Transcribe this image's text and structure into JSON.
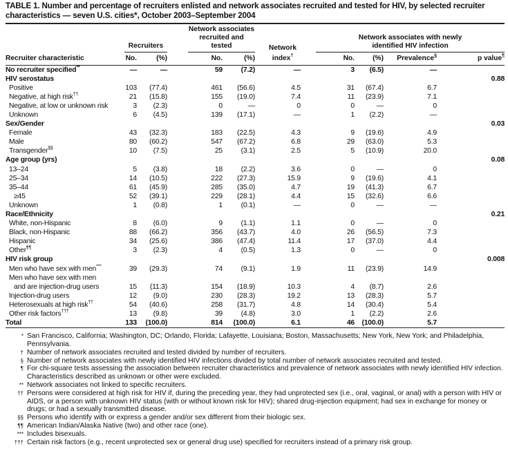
{
  "title": "TABLE 1. Number and percentage of recruiters enlisted and network associates recruited and tested for HIV, by selected recruiter characteristics — seven U.S. cities*, October 2003–September 2004",
  "headers": {
    "recruiters": "Recruiters",
    "network_associates": "Network associates recruited and tested",
    "network_index": "Network",
    "network_index2": "index",
    "network_index_sup": "†",
    "hiv_group": "Network associates with newly identified HIV infection",
    "characteristic": "Recruiter characteristic",
    "no": "No.",
    "pct": "(%)",
    "prevalence": "Prevalence",
    "prevalence_sup": "§",
    "p_value": "p value",
    "p_value_sup": "¶"
  },
  "rows": [
    {
      "label": "No recruiter specified",
      "sup": "**",
      "type": "bold",
      "v": [
        "—",
        "—",
        "59",
        "(7.2)",
        "—",
        "3",
        "(6.5)",
        "—",
        ""
      ]
    },
    {
      "label": "HIV serostatus",
      "type": "group",
      "v": [
        "",
        "",
        "",
        "",
        "",
        "",
        "",
        "",
        "0.88"
      ]
    },
    {
      "label": "Positive",
      "type": "item",
      "v": [
        "103",
        "(77.4)",
        "461",
        "(56.6)",
        "4.5",
        "31",
        "(67.4)",
        "6.7",
        ""
      ]
    },
    {
      "label": "Negative, at high risk",
      "sup": "††",
      "type": "item",
      "v": [
        "21",
        "(15.8)",
        "155",
        "(19.0)",
        "7.4",
        "11",
        "(23.9)",
        "7.1",
        ""
      ]
    },
    {
      "label": "Negative, at low or unknown risk",
      "type": "item",
      "v": [
        "3",
        "(2.3)",
        "0",
        "—",
        "0",
        "0",
        "—",
        "0",
        ""
      ]
    },
    {
      "label": "Unknown",
      "type": "item",
      "v": [
        "6",
        "(4.5)",
        "139",
        "(17.1)",
        "—",
        "1",
        "(2.2)",
        "—",
        ""
      ]
    },
    {
      "label": "Sex/Gender",
      "type": "group",
      "v": [
        "",
        "",
        "",
        "",
        "",
        "",
        "",
        "",
        "0.03"
      ]
    },
    {
      "label": "Female",
      "type": "item",
      "v": [
        "43",
        "(32.3)",
        "183",
        "(22.5)",
        "4.3",
        "9",
        "(19.6)",
        "4.9",
        ""
      ]
    },
    {
      "label": "Male",
      "type": "item",
      "v": [
        "80",
        "(60.2)",
        "547",
        "(67.2)",
        "6.8",
        "29",
        "(63.0)",
        "5.3",
        ""
      ]
    },
    {
      "label": "Transgender",
      "sup": "§§",
      "type": "item",
      "v": [
        "10",
        "(7.5)",
        "25",
        "(3.1)",
        "2.5",
        "5",
        "(10.9)",
        "20.0",
        ""
      ]
    },
    {
      "label": "Age group (yrs)",
      "type": "group",
      "v": [
        "",
        "",
        "",
        "",
        "",
        "",
        "",
        "",
        "0.08"
      ]
    },
    {
      "label": "13–24",
      "type": "item",
      "v": [
        "5",
        "(3.8)",
        "18",
        "(2.2)",
        "3.6",
        "0",
        "—",
        "0",
        ""
      ]
    },
    {
      "label": "25–34",
      "type": "item",
      "v": [
        "14",
        "(10.5)",
        "222",
        "(27.3)",
        "15.9",
        "9",
        "(19.6)",
        "4.1",
        ""
      ]
    },
    {
      "label": "35–44",
      "type": "item",
      "v": [
        "61",
        "(45.9)",
        "285",
        "(35.0)",
        "4.7",
        "19",
        "(41.3)",
        "6.7",
        ""
      ]
    },
    {
      "label": "≥45",
      "type": "item2",
      "v": [
        "52",
        "(39.1)",
        "229",
        "(28.1)",
        "4.4",
        "15",
        "(32.6)",
        "6.6",
        ""
      ]
    },
    {
      "label": "Unknown",
      "type": "item",
      "v": [
        "1",
        "(0.8)",
        "1",
        "(0.1)",
        "—",
        "0",
        "—",
        "—",
        ""
      ]
    },
    {
      "label": "Race/Ethnicity",
      "type": "group",
      "v": [
        "",
        "",
        "",
        "",
        "",
        "",
        "",
        "",
        "0.21"
      ]
    },
    {
      "label": "White, non-Hispanic",
      "type": "item",
      "v": [
        "8",
        "(6.0)",
        "9",
        "(1.1)",
        "1.1",
        "0",
        "—",
        "0",
        ""
      ]
    },
    {
      "label": "Black, non-Hispanic",
      "type": "item",
      "v": [
        "88",
        "(66.2)",
        "356",
        "(43.7)",
        "4.0",
        "26",
        "(56.5)",
        "7.3",
        ""
      ]
    },
    {
      "label": "Hispanic",
      "type": "item",
      "v": [
        "34",
        "(25.6)",
        "386",
        "(47.4)",
        "11.4",
        "17",
        "(37.0)",
        "4.4",
        ""
      ]
    },
    {
      "label": "Other",
      "sup": "¶¶",
      "type": "item",
      "v": [
        "3",
        "(2.3)",
        "4",
        "(0.5)",
        "1.3",
        "0",
        "—",
        "0",
        ""
      ]
    },
    {
      "label": "HIV risk group",
      "type": "group",
      "v": [
        "",
        "",
        "",
        "",
        "",
        "",
        "",
        "",
        "0.008"
      ]
    },
    {
      "label": "Men who have sex with men",
      "sup": "***",
      "type": "item",
      "v": [
        "39",
        "(29.3)",
        "74",
        "(9.1)",
        "1.9",
        "11",
        "(23.9)",
        "14.9",
        ""
      ]
    },
    {
      "label": "Men who have sex with men",
      "type": "item",
      "v": [
        "",
        "",
        "",
        "",
        "",
        "",
        "",
        "",
        ""
      ]
    },
    {
      "label": "and are injection-drug users",
      "type": "item2",
      "v": [
        "15",
        "(11.3)",
        "154",
        "(18.9)",
        "10.3",
        "4",
        "(8.7)",
        "2.6",
        ""
      ]
    },
    {
      "label": "Injection-drug users",
      "type": "item",
      "v": [
        "12",
        "(9.0)",
        "230",
        "(28.3)",
        "19.2",
        "13",
        "(28.3)",
        "5.7",
        ""
      ]
    },
    {
      "label": "Heterosexuals at high risk",
      "sup": "††",
      "type": "item",
      "v": [
        "54",
        "(40.6)",
        "258",
        "(31.7)",
        "4.8",
        "14",
        "(30.4)",
        "5.4",
        ""
      ]
    },
    {
      "label": "Other risk factors",
      "sup": "†††",
      "type": "item",
      "v": [
        "13",
        "(9.8)",
        "39",
        "(4.8)",
        "3.0",
        "1",
        "(2.2)",
        "2.6",
        ""
      ]
    },
    {
      "label": "Total",
      "type": "total",
      "v": [
        "133",
        "(100.0)",
        "814",
        "(100.0)",
        "6.1",
        "46",
        "(100.0)",
        "5.7",
        ""
      ]
    }
  ],
  "footnotes": [
    {
      "sym": "*",
      "text": "San Francisco, California; Washington, DC; Orlando, Florida; Lafayette, Louisiana; Boston, Massachusetts; New York, New York; and Philadelphia, Pennsylvania."
    },
    {
      "sym": "†",
      "text": "Number of network associates recruited and tested divided by number of recruiters."
    },
    {
      "sym": "§",
      "text": "Number of network associates with newly identified HIV infections divided by total number of network associates recruited and tested."
    },
    {
      "sym": "¶",
      "text": "For chi-square tests assessing the association between recruiter characteristics and prevalence of network associates with newly identified HIV infection. Characteristics described as unknown or other were excluded."
    },
    {
      "sym": "**",
      "text": "Network associates not linked to specific recruiters."
    },
    {
      "sym": "††",
      "text": "Persons were considered at high risk for HIV if, during the preceding year, they had unprotected sex (i.e., oral, vaginal, or anal) with a person with HIV or AIDS, or a person with unknown HIV status (with or without known risk for HIV); shared drug-injection equipment; had sex in exchange for money or drugs; or had a sexually transmitted disease."
    },
    {
      "sym": "§§",
      "text": "Persons who identify with or express a gender and/or sex different from their biologic sex."
    },
    {
      "sym": "¶¶",
      "text": "American Indian/Alaska Native (two) and other race (one)."
    },
    {
      "sym": "***",
      "text": "Includes bisexuals."
    },
    {
      "sym": "†††",
      "text": "Certain risk factors (e.g., recent unprotected sex or general drug use) specified for recruiters instead of a primary risk group."
    }
  ]
}
